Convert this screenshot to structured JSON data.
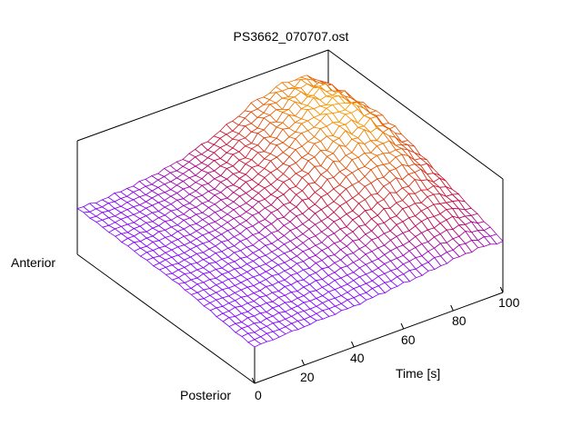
{
  "chart_data": {
    "type": "surface",
    "title": "PS3662_070707.ost",
    "xlabel": "Time [s]",
    "ylabel_near": "Posterior",
    "ylabel_far": "Anterior",
    "xlim": [
      0,
      100
    ],
    "zlim": [
      0,
      1
    ],
    "x_ticks": [
      "0",
      "20",
      "40",
      "60",
      "80",
      "100"
    ],
    "x": [
      0,
      10,
      20,
      30,
      40,
      50,
      60,
      70,
      80,
      90,
      100
    ],
    "rows_posterior_to_anterior": [
      [
        0.32,
        0.33,
        0.34,
        0.35,
        0.36,
        0.38,
        0.4,
        0.42,
        0.45,
        0.47,
        0.45
      ],
      [
        0.34,
        0.35,
        0.36,
        0.37,
        0.39,
        0.42,
        0.46,
        0.5,
        0.55,
        0.58,
        0.52
      ],
      [
        0.36,
        0.37,
        0.38,
        0.4,
        0.43,
        0.47,
        0.53,
        0.6,
        0.66,
        0.68,
        0.6
      ],
      [
        0.38,
        0.39,
        0.4,
        0.42,
        0.46,
        0.52,
        0.6,
        0.7,
        0.78,
        0.8,
        0.68
      ],
      [
        0.39,
        0.4,
        0.42,
        0.45,
        0.5,
        0.57,
        0.67,
        0.78,
        0.86,
        0.88,
        0.74
      ],
      [
        0.4,
        0.41,
        0.43,
        0.46,
        0.51,
        0.59,
        0.7,
        0.82,
        0.9,
        0.92,
        0.78
      ],
      [
        0.4,
        0.41,
        0.43,
        0.46,
        0.51,
        0.58,
        0.68,
        0.8,
        0.88,
        0.9,
        0.76
      ],
      [
        0.4,
        0.4,
        0.42,
        0.45,
        0.49,
        0.56,
        0.65,
        0.76,
        0.83,
        0.85,
        0.72
      ]
    ],
    "colormap": [
      "#8000ff",
      "#c00040",
      "#e05000",
      "#ffb000"
    ],
    "grid": false,
    "legend": "none"
  }
}
